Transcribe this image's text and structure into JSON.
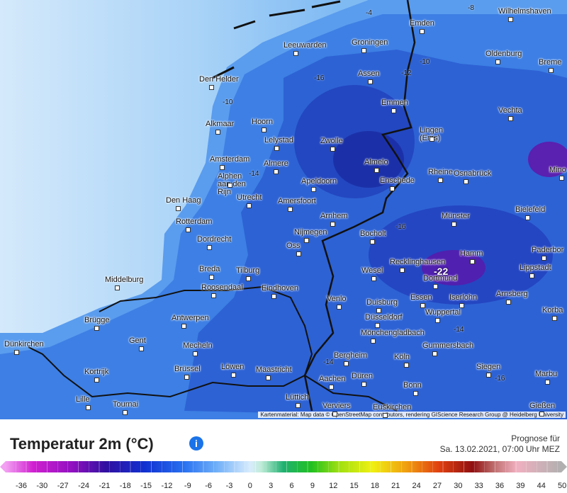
{
  "map": {
    "cities": [
      "Wilhelmshaven",
      "Emden",
      "Groningen",
      "Leeuwarden",
      "Oldenburg",
      "Breme",
      "Den Helder",
      "Assen",
      "Emmen",
      "Vechta",
      "Alkmaar",
      "Hoorn",
      "Lingen (Ems)",
      "Lelystad",
      "Zwolle",
      "Mino",
      "Amsterdam",
      "Almere",
      "Almelo",
      "Alphen aan den Rijn",
      "Rheine",
      "Osnabrück",
      "Apeldoorn",
      "Enschede",
      "Den Haag",
      "Utrecht",
      "Amersfoort",
      "Bielefeld",
      "Arnhem",
      "Münster",
      "Rotterdam",
      "Nijmegen",
      "Bocholt",
      "Dordrecht",
      "Oss",
      "Paderbor",
      "Hamm",
      "Recklinghausen",
      "Breda",
      "Tilburg",
      "Wesel",
      "Lippstadt",
      "Middelburg",
      "Dortmund",
      "Roosendaal",
      "Eindhoven",
      "Essen",
      "Iserlohn",
      "Arnsberg",
      "Venlo",
      "Duisburg",
      "Wuppertal",
      "Korba",
      "Düsseldorf",
      "Brügge",
      "Antwerpen",
      "Mönchengladbach",
      "Gent",
      "Dünkirchen",
      "Mecheln",
      "Gummersbach",
      "Bergheim",
      "Köln",
      "Kortrijk",
      "Brüssel",
      "Löwen",
      "Maastricht",
      "Siegen",
      "Aachen",
      "Düren",
      "Marbu",
      "Bonn",
      "Lille",
      "Tournai",
      "Lüttich",
      "Verviers",
      "Euskirchen",
      "Gießen"
    ],
    "contour_labels": [
      "-8",
      "-4",
      "-10",
      "-12",
      "-16",
      "-10",
      "-14",
      "-16",
      "-22",
      "-14",
      "-14",
      "-16"
    ],
    "attribution": "Kartenmaterial: Map data © OpenStreetMap contributors, rendering GIScience Research Group @ Heidelberg University"
  },
  "legend": {
    "title": "Temperatur 2m (°C)",
    "info": "i",
    "prognose_label": "Prognose für",
    "prognose_time": "Sa. 13.02.2021, 07:00 Uhr MEZ",
    "scale_labels": [
      -36,
      -30,
      -27,
      -24,
      -21,
      -18,
      -15,
      -12,
      -9,
      -6,
      -3,
      0,
      3,
      6,
      9,
      12,
      15,
      18,
      21,
      24,
      27,
      30,
      33,
      36,
      39,
      44,
      50
    ]
  }
}
